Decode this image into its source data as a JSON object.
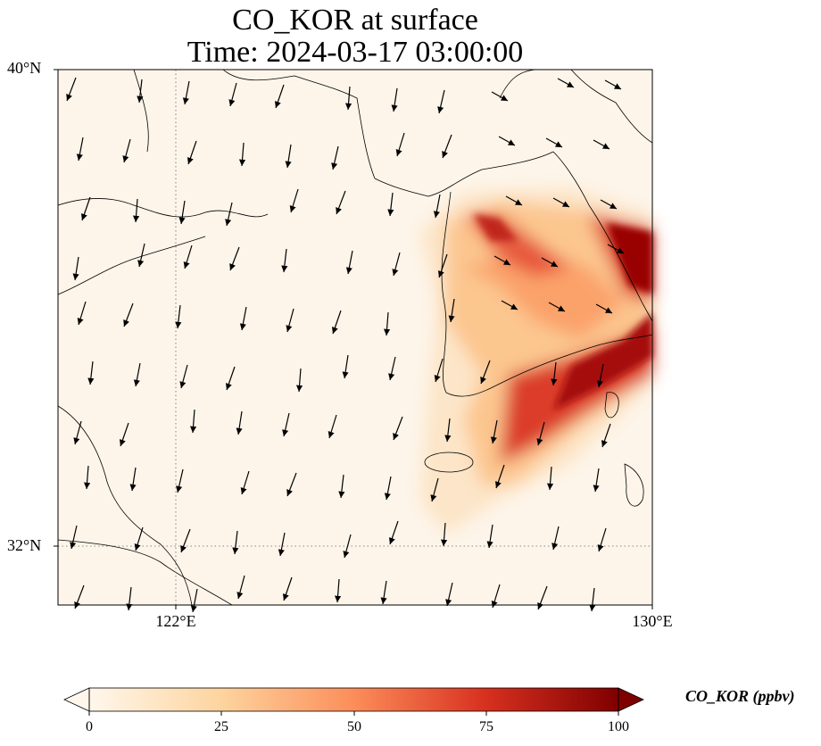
{
  "title_line1": "CO_KOR at surface",
  "title_line2": "Time: 2024-03-17 03:00:00",
  "axes": {
    "lat_labels": [
      "40°N",
      "32°N"
    ],
    "lon_labels": [
      "122°E",
      "130°E"
    ]
  },
  "colorbar": {
    "label": "CO_KOR (ppbv)",
    "ticks": [
      "0",
      "25",
      "50",
      "75",
      "100"
    ],
    "colormap": [
      "#fff7ec",
      "#fdd49e",
      "#fc8d59",
      "#d7301f",
      "#7f0000"
    ],
    "extend": "both"
  },
  "map": {
    "extent": {
      "lon": [
        120,
        130
      ],
      "lat": [
        31,
        40
      ]
    },
    "gridlines": {
      "lon": 122,
      "lat": 32,
      "style": "dotted"
    },
    "land_color": "#fdf5ea",
    "plume_color_high": "#7f0000",
    "wind_vectors": "north-to-south flow over the Yellow Sea"
  }
}
